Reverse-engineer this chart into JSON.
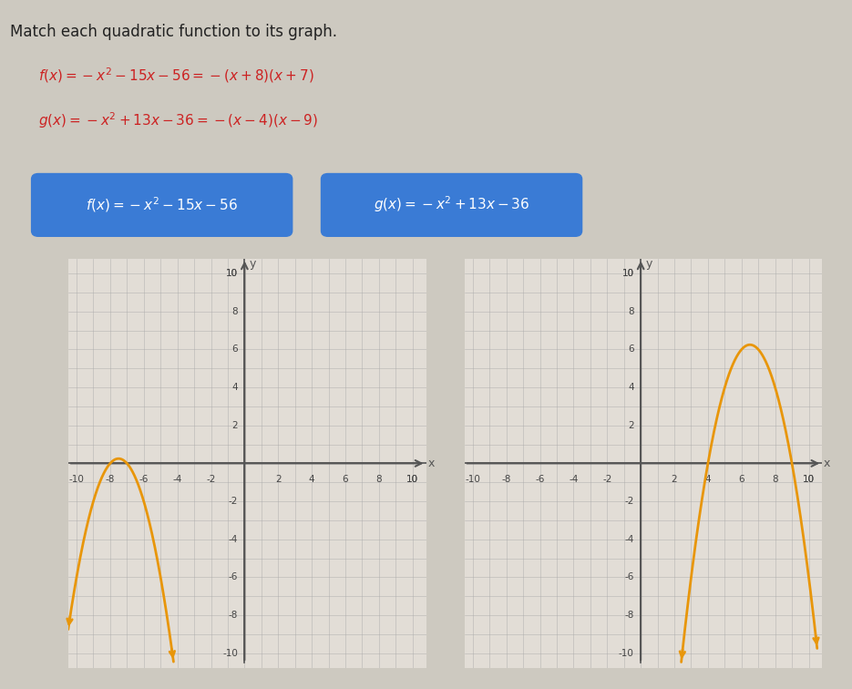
{
  "title_text": "Match each quadratic function to its graph.",
  "box_color": "#3a7bd5",
  "box_text_color": "#ffffff",
  "curve_color": "#e8960a",
  "curve_linewidth": 2.0,
  "grid_color": "#aaaaaa",
  "axis_color": "#555555",
  "background_color": "#cdc9c0",
  "plot_bg_color": "#e2ddd6",
  "text_color_title": "#222222",
  "text_color_formula": "#cc2222",
  "formula_f": "f(x) = -x^2 - 15x - 56 = -(x + 8)(x + 7)",
  "formula_g": "g(x) = -x^2 + 13x - 36 = -(x - 4)(x - 9)",
  "box_f_text": "f(x) = -x^2 - 15x - 56",
  "box_g_text": "g(x) = -x^2 + 13x - 36"
}
